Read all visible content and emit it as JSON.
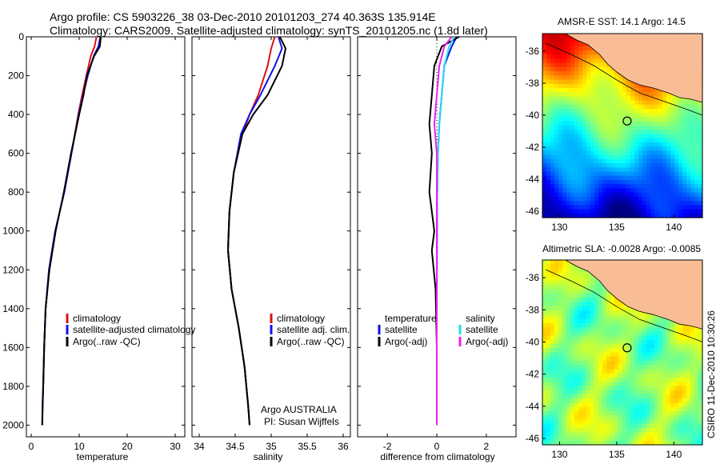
{
  "figure": {
    "title_line1": "Argo profile: CS 5903226_38 03-Dec-2010 20101203_274 40.363S 135.914E",
    "title_line2": "Climatology: CARS2009. Satellite-adjusted climatology: synTS_20101205.nc (1.8d later)",
    "stamp": "CSIRO 11-Dec-2010 10:30:26"
  },
  "colors": {
    "climatology": "#dd1111",
    "satellite": "#1111ee",
    "argo": "#000000",
    "satellite_salinity_diff": "#22ddee",
    "argo_salinity_diff": "#ee22ee",
    "land": "#f9bd96"
  },
  "chart_data": [
    {
      "type": "line",
      "xlabel": "temperature",
      "ylabel": "",
      "xlim": [
        -1,
        32
      ],
      "ylim": [
        2060,
        0
      ],
      "yticks": [
        0,
        200,
        400,
        600,
        800,
        1000,
        1200,
        1400,
        1600,
        1800,
        2000
      ],
      "xticks": [
        0,
        10,
        20,
        30
      ],
      "legend_position": "lower-left",
      "legend": [
        "climatology",
        "satellite-adjusted climatology",
        "Argo(..raw -QC)"
      ],
      "series": [
        {
          "name": "climatology",
          "color": "#dd1111",
          "x": [
            13.6,
            13.2,
            12.4,
            11.5,
            10.6,
            9.8,
            8.4,
            6.9,
            5.0,
            3.7,
            3.0,
            2.7,
            2.5,
            2.35,
            2.3
          ],
          "y": [
            0,
            50,
            100,
            200,
            300,
            400,
            600,
            800,
            1000,
            1200,
            1400,
            1600,
            1800,
            1900,
            2000
          ]
        },
        {
          "name": "satellite-adjusted climatology",
          "color": "#1111ee",
          "x": [
            14.4,
            14.0,
            13.0,
            11.8,
            10.8,
            9.9,
            8.4,
            6.9,
            5.0,
            3.7,
            3.0,
            2.7,
            2.5,
            2.35,
            2.3
          ],
          "y": [
            0,
            50,
            100,
            200,
            300,
            400,
            600,
            800,
            1000,
            1200,
            1400,
            1600,
            1800,
            1900,
            2000
          ]
        },
        {
          "name": "Argo(..raw -QC)",
          "color": "#000000",
          "x": [
            14.5,
            14.3,
            13.1,
            11.6,
            10.9,
            10.0,
            8.3,
            6.8,
            5.1,
            3.8,
            3.0,
            2.7,
            2.5,
            2.4,
            2.3
          ],
          "y": [
            0,
            50,
            100,
            200,
            300,
            400,
            600,
            800,
            1000,
            1200,
            1400,
            1600,
            1800,
            1900,
            2000
          ]
        }
      ]
    },
    {
      "type": "line",
      "xlabel": "salinity",
      "ylabel": "",
      "xlim": [
        33.9,
        36.1
      ],
      "ylim": [
        2060,
        0
      ],
      "xticks": [
        34,
        34.5,
        35,
        35.5,
        36
      ],
      "legend_position": "lower-right",
      "legend": [
        "climatology",
        "satellite adj. clim.",
        "Argo(..raw -QC)"
      ],
      "annotation_line1": "Argo AUSTRALIA",
      "annotation_line2": "PI: Susan Wijffels",
      "series": [
        {
          "name": "climatology",
          "color": "#dd1111",
          "x": [
            35.05,
            35.0,
            34.95,
            34.82,
            34.7,
            34.6,
            34.48,
            34.42,
            34.4,
            34.45,
            34.55,
            34.63,
            34.68,
            34.7
          ],
          "y": [
            0,
            60,
            150,
            300,
            400,
            500,
            700,
            900,
            1100,
            1300,
            1500,
            1700,
            1900,
            2000
          ]
        },
        {
          "name": "satellite adj. clim.",
          "color": "#1111ee",
          "x": [
            35.1,
            35.15,
            35.05,
            34.85,
            34.7,
            34.58,
            34.48,
            34.42,
            34.4,
            34.45,
            34.55,
            34.63,
            34.68,
            34.7
          ],
          "y": [
            0,
            60,
            150,
            300,
            400,
            500,
            700,
            900,
            1100,
            1300,
            1500,
            1700,
            1900,
            2000
          ]
        },
        {
          "name": "Argo(..raw -QC)",
          "color": "#000000",
          "x": [
            35.12,
            35.2,
            35.15,
            34.95,
            34.75,
            34.6,
            34.48,
            34.42,
            34.4,
            34.45,
            34.55,
            34.63,
            34.68,
            34.7
          ],
          "y": [
            0,
            60,
            150,
            300,
            400,
            500,
            700,
            900,
            1100,
            1300,
            1500,
            1700,
            1900,
            2000
          ]
        }
      ]
    },
    {
      "type": "line",
      "xlabel": "difference from climatology",
      "ylabel": "",
      "xlim": [
        -3.2,
        3.2
      ],
      "ylim": [
        2060,
        0
      ],
      "xticks": [
        -2,
        0,
        2
      ],
      "legend_position": "lower-center",
      "legend_columns": [
        {
          "header": "temperature",
          "items": [
            "satellite",
            "Argo(-adj)"
          ]
        },
        {
          "header": "salinity",
          "items": [
            "satellite",
            "Argo(-adj)"
          ]
        }
      ],
      "series": [
        {
          "name": "temperature satellite",
          "color": "#1111ee",
          "x": [
            0.8,
            0.6,
            0.3,
            0.2,
            0.1,
            0.05,
            0.02,
            0.01,
            0.0,
            0.0
          ],
          "y": [
            0,
            50,
            150,
            300,
            450,
            600,
            800,
            1000,
            1500,
            2000
          ]
        },
        {
          "name": "temperature Argo(-adj)",
          "color": "#000000",
          "x": [
            0.9,
            0.2,
            -0.1,
            -0.2,
            -0.3,
            -0.2,
            -0.3,
            -0.1,
            -0.2,
            -0.05,
            0.0,
            0.0
          ],
          "y": [
            0,
            50,
            150,
            300,
            450,
            600,
            800,
            1000,
            1100,
            1300,
            1600,
            2000
          ]
        },
        {
          "name": "salinity satellite",
          "color": "#22ddee",
          "x": [
            0.7,
            0.5,
            0.3,
            0.2,
            0.1,
            0.05,
            0.02,
            0.0,
            0.0
          ],
          "y": [
            0,
            50,
            150,
            300,
            450,
            600,
            800,
            1000,
            2000
          ]
        },
        {
          "name": "salinity Argo(-adj)",
          "color": "#ee22ee",
          "x": [
            0.6,
            0.3,
            0.1,
            0.0,
            -0.1,
            0.0,
            0.0,
            0.0
          ],
          "y": [
            0,
            50,
            150,
            300,
            450,
            600,
            800,
            2000
          ]
        }
      ]
    },
    {
      "type": "heatmap",
      "title": "AMSR-E SST: 14.1 Argo: 14.5",
      "xlim": [
        128.5,
        142.5
      ],
      "ylim": [
        -46.4,
        -34.9
      ],
      "xticks": [
        130,
        135,
        140
      ],
      "yticks": [
        -36,
        -38,
        -40,
        -42,
        -44,
        -46
      ],
      "argo_marker": {
        "lon": 135.914,
        "lat": -40.363
      },
      "colormap": "jet",
      "field": "SST",
      "grid_on": false
    },
    {
      "type": "heatmap",
      "title": "Altimetric SLA: -0.0028 Argo: -0.0085",
      "xlim": [
        128.5,
        142.5
      ],
      "ylim": [
        -46.4,
        -34.9
      ],
      "xticks": [
        130,
        135,
        140
      ],
      "yticks": [
        -36,
        -38,
        -40,
        -42,
        -44,
        -46
      ],
      "argo_marker": {
        "lon": 135.914,
        "lat": -40.363
      },
      "colormap": "jet",
      "field": "SLA",
      "grid_on": false
    }
  ]
}
